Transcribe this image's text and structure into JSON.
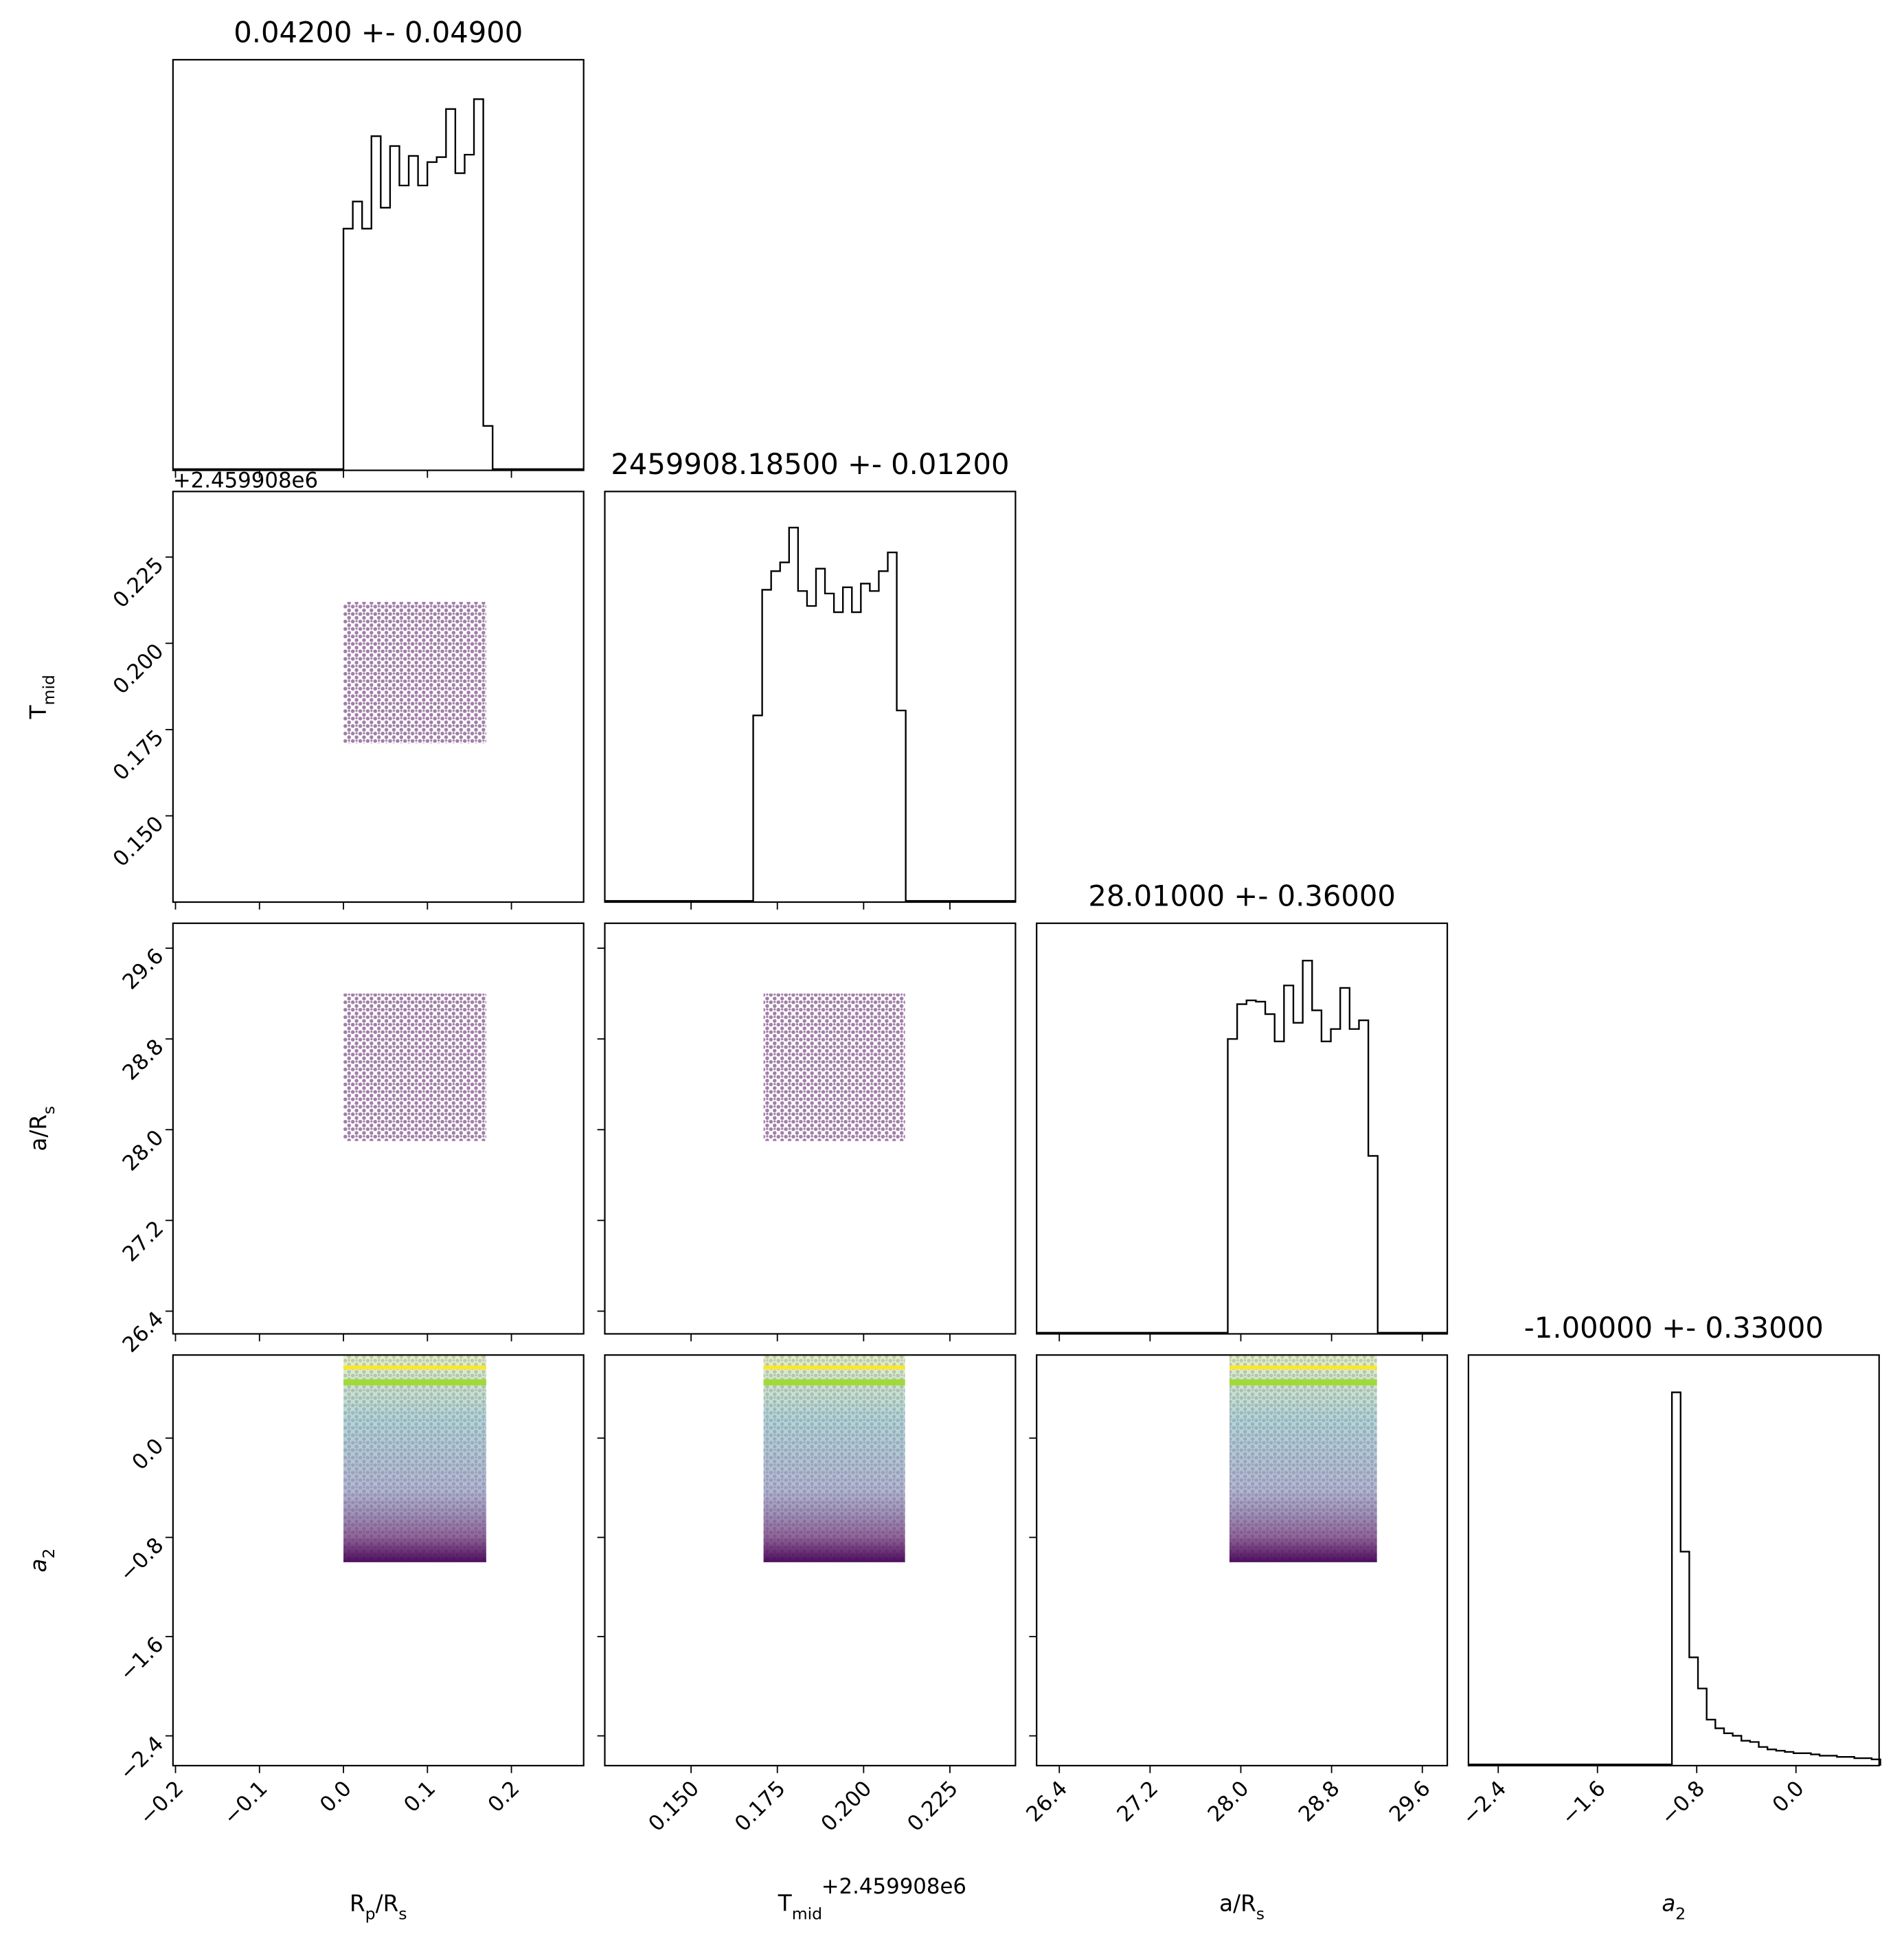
{
  "chart_data": {
    "type": "corner",
    "point_color": "#440154",
    "hist_color": "#000000",
    "params": [
      {
        "label_parts": [
          {
            "text": "R"
          },
          {
            "text": "p",
            "sub": true
          },
          {
            "text": "/R"
          },
          {
            "text": "s",
            "sub": true
          }
        ],
        "title": "0.04200 +- 0.04900",
        "lim": [
          -0.203,
          0.286
        ],
        "ticks": [
          {
            "value": -0.2,
            "label": "−0.2"
          },
          {
            "value": -0.1,
            "label": "−0.1"
          },
          {
            "value": 0,
            "label": "0.0"
          },
          0.1,
          0.2
        ],
        "sample_range": [
          0.0,
          0.17
        ],
        "hist": {
          "bins": [
            0,
            0.0111,
            0.0222,
            0.0333,
            0.0444,
            0.0555,
            0.0666,
            0.0777,
            0.0888,
            0.0999,
            0.111,
            0.1221,
            0.1332,
            0.1443,
            0.1554,
            0.1665,
            0.1776
          ],
          "counts": [
            196,
            218,
            196,
            271,
            213,
            263,
            231,
            255,
            231,
            250,
            254,
            293,
            241,
            256,
            301,
            36
          ],
          "ylim": [
            0,
            333
          ]
        }
      },
      {
        "label_parts": [
          {
            "text": "T"
          },
          {
            "text": "mid",
            "sub": true
          }
        ],
        "offset_label": "+2.459908e6",
        "title": "2459908.18500 +- 0.01200",
        "lim": [
          0.125,
          0.244
        ],
        "ticks": [
          {
            "value": 0.15,
            "label": "0.150"
          },
          0.175,
          {
            "value": 0.2,
            "label": "0.200"
          },
          0.225
        ],
        "sample_range": [
          0.171,
          0.212
        ],
        "hist": {
          "bins": [
            0.168,
            0.1706,
            0.1732,
            0.1758,
            0.1784,
            0.181,
            0.1836,
            0.1862,
            0.1888,
            0.1914,
            0.194,
            0.1966,
            0.1992,
            0.2018,
            0.2044,
            0.207,
            0.2096,
            0.2122
          ],
          "counts": [
            150,
            251,
            266,
            273,
            301,
            250,
            238,
            268,
            248,
            233,
            253,
            233,
            256,
            250,
            266,
            281,
            154
          ],
          "ylim": [
            0,
            330
          ]
        }
      },
      {
        "label_parts": [
          {
            "text": "a/R"
          },
          {
            "text": "s",
            "sub": true
          }
        ],
        "title": "28.01000 +- 0.36000",
        "lim": [
          26.2,
          29.82
        ],
        "ticks": [
          26.4,
          27.2,
          {
            "value": 28,
            "label": "28.0"
          },
          28.8,
          29.6
        ],
        "sample_range": [
          27.9,
          29.2
        ],
        "hist": {
          "bins": [
            27.885,
            27.9676,
            28.0502,
            28.1328,
            28.2154,
            28.298,
            28.3806,
            28.4632,
            28.5458,
            28.6284,
            28.711,
            28.7936,
            28.8762,
            28.9588,
            29.0414,
            29.124,
            29.2066
          ],
          "counts": [
            237,
            265,
            268,
            267,
            257,
            235,
            280,
            250,
            300,
            260,
            235,
            245,
            278,
            245,
            252,
            143
          ],
          "ylim": [
            0,
            330
          ]
        }
      },
      {
        "label_parts": [
          {
            "text": "a",
            "italic": true
          },
          {
            "text": "2",
            "sub": true
          }
        ],
        "title": "-1.00000 +- 0.33000",
        "lim": [
          -2.64,
          0.67
        ],
        "ticks": [
          {
            "value": -2.4,
            "label": "−2.4"
          },
          {
            "value": -1.6,
            "label": "−1.6"
          },
          {
            "value": -0.8,
            "label": "−0.8"
          },
          {
            "value": 0,
            "label": "0.0"
          }
        ],
        "sample_range": [
          -1.0,
          0.67
        ],
        "contours": [
          {
            "value": 0.57,
            "color": "#fde725"
          },
          {
            "value": 0.45,
            "color": "#a0da39"
          }
        ],
        "hist": {
          "bins": [
            -1.0,
            -0.93,
            -0.86,
            -0.79,
            -0.72,
            -0.65,
            -0.58,
            -0.51,
            -0.44,
            -0.37,
            -0.3,
            -0.23,
            -0.16,
            -0.09,
            -0.02,
            0.05,
            0.12,
            0.19,
            0.26,
            0.33,
            0.4,
            0.47,
            0.54,
            0.61,
            0.68
          ],
          "counts": [
            300,
            172,
            87,
            62,
            37,
            30,
            26,
            24,
            20,
            19,
            15,
            13,
            12,
            11,
            10,
            10,
            9,
            8,
            8,
            7,
            7,
            6,
            6,
            5
          ],
          "ylim": [
            0,
            330
          ]
        }
      }
    ]
  }
}
